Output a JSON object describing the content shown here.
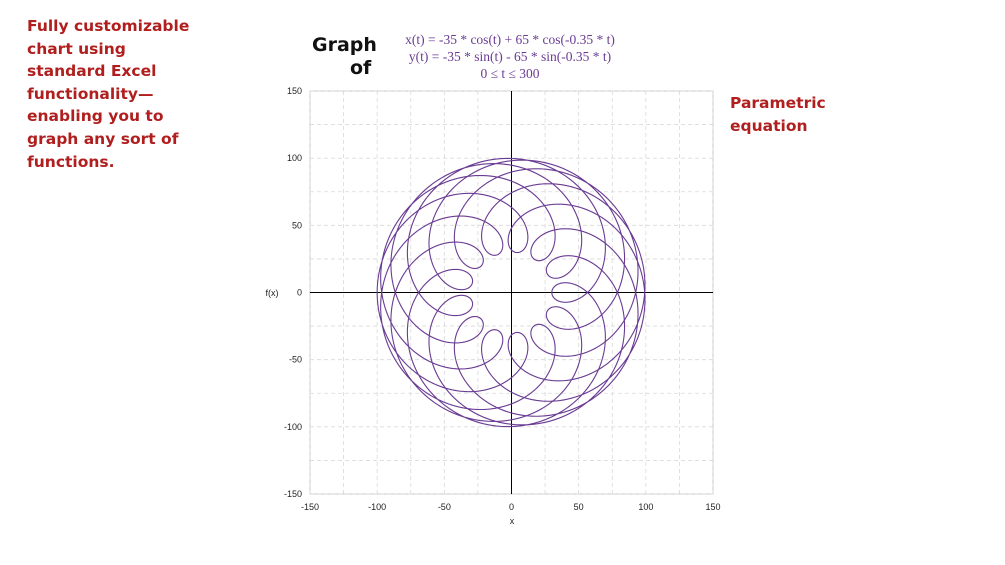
{
  "promo_text": "Fully customizable chart using standard Excel functionality—enabling you to graph any sort of functions.",
  "side_label": "Parametric equation",
  "heading": {
    "word1": "Graph",
    "word2": "of"
  },
  "equations": {
    "x": "x(t) = -35 * cos(t) + 65 * cos(-0.35 * t)",
    "y": "y(t) = -35 * sin(t) - 65 * sin(-0.35 * t)",
    "range": "0 ≤ t ≤ 300"
  },
  "colors": {
    "accent": "#b01e1e",
    "curve": "#6a3c93",
    "grid": "#d9d9d9",
    "axis": "#000000"
  },
  "chart_data": {
    "type": "line",
    "parametric": {
      "a": -35,
      "b": 65,
      "k": -0.35,
      "x_formula": "a*cos(t) + b*cos(k*t)",
      "y_formula": "a*sin(t) - b*sin(k*t)",
      "t_min": 0,
      "t_max": 300
    },
    "xlabel": "x",
    "ylabel": "f(x)",
    "xlim": [
      -150,
      150
    ],
    "ylim": [
      -150,
      150
    ],
    "x_ticks": [
      "-150",
      "-100",
      "-50",
      "0",
      "50",
      "100",
      "150"
    ],
    "y_ticks": [
      "150",
      "100",
      "50",
      "0",
      "-50",
      "-100",
      "-150"
    ],
    "grid": true
  }
}
